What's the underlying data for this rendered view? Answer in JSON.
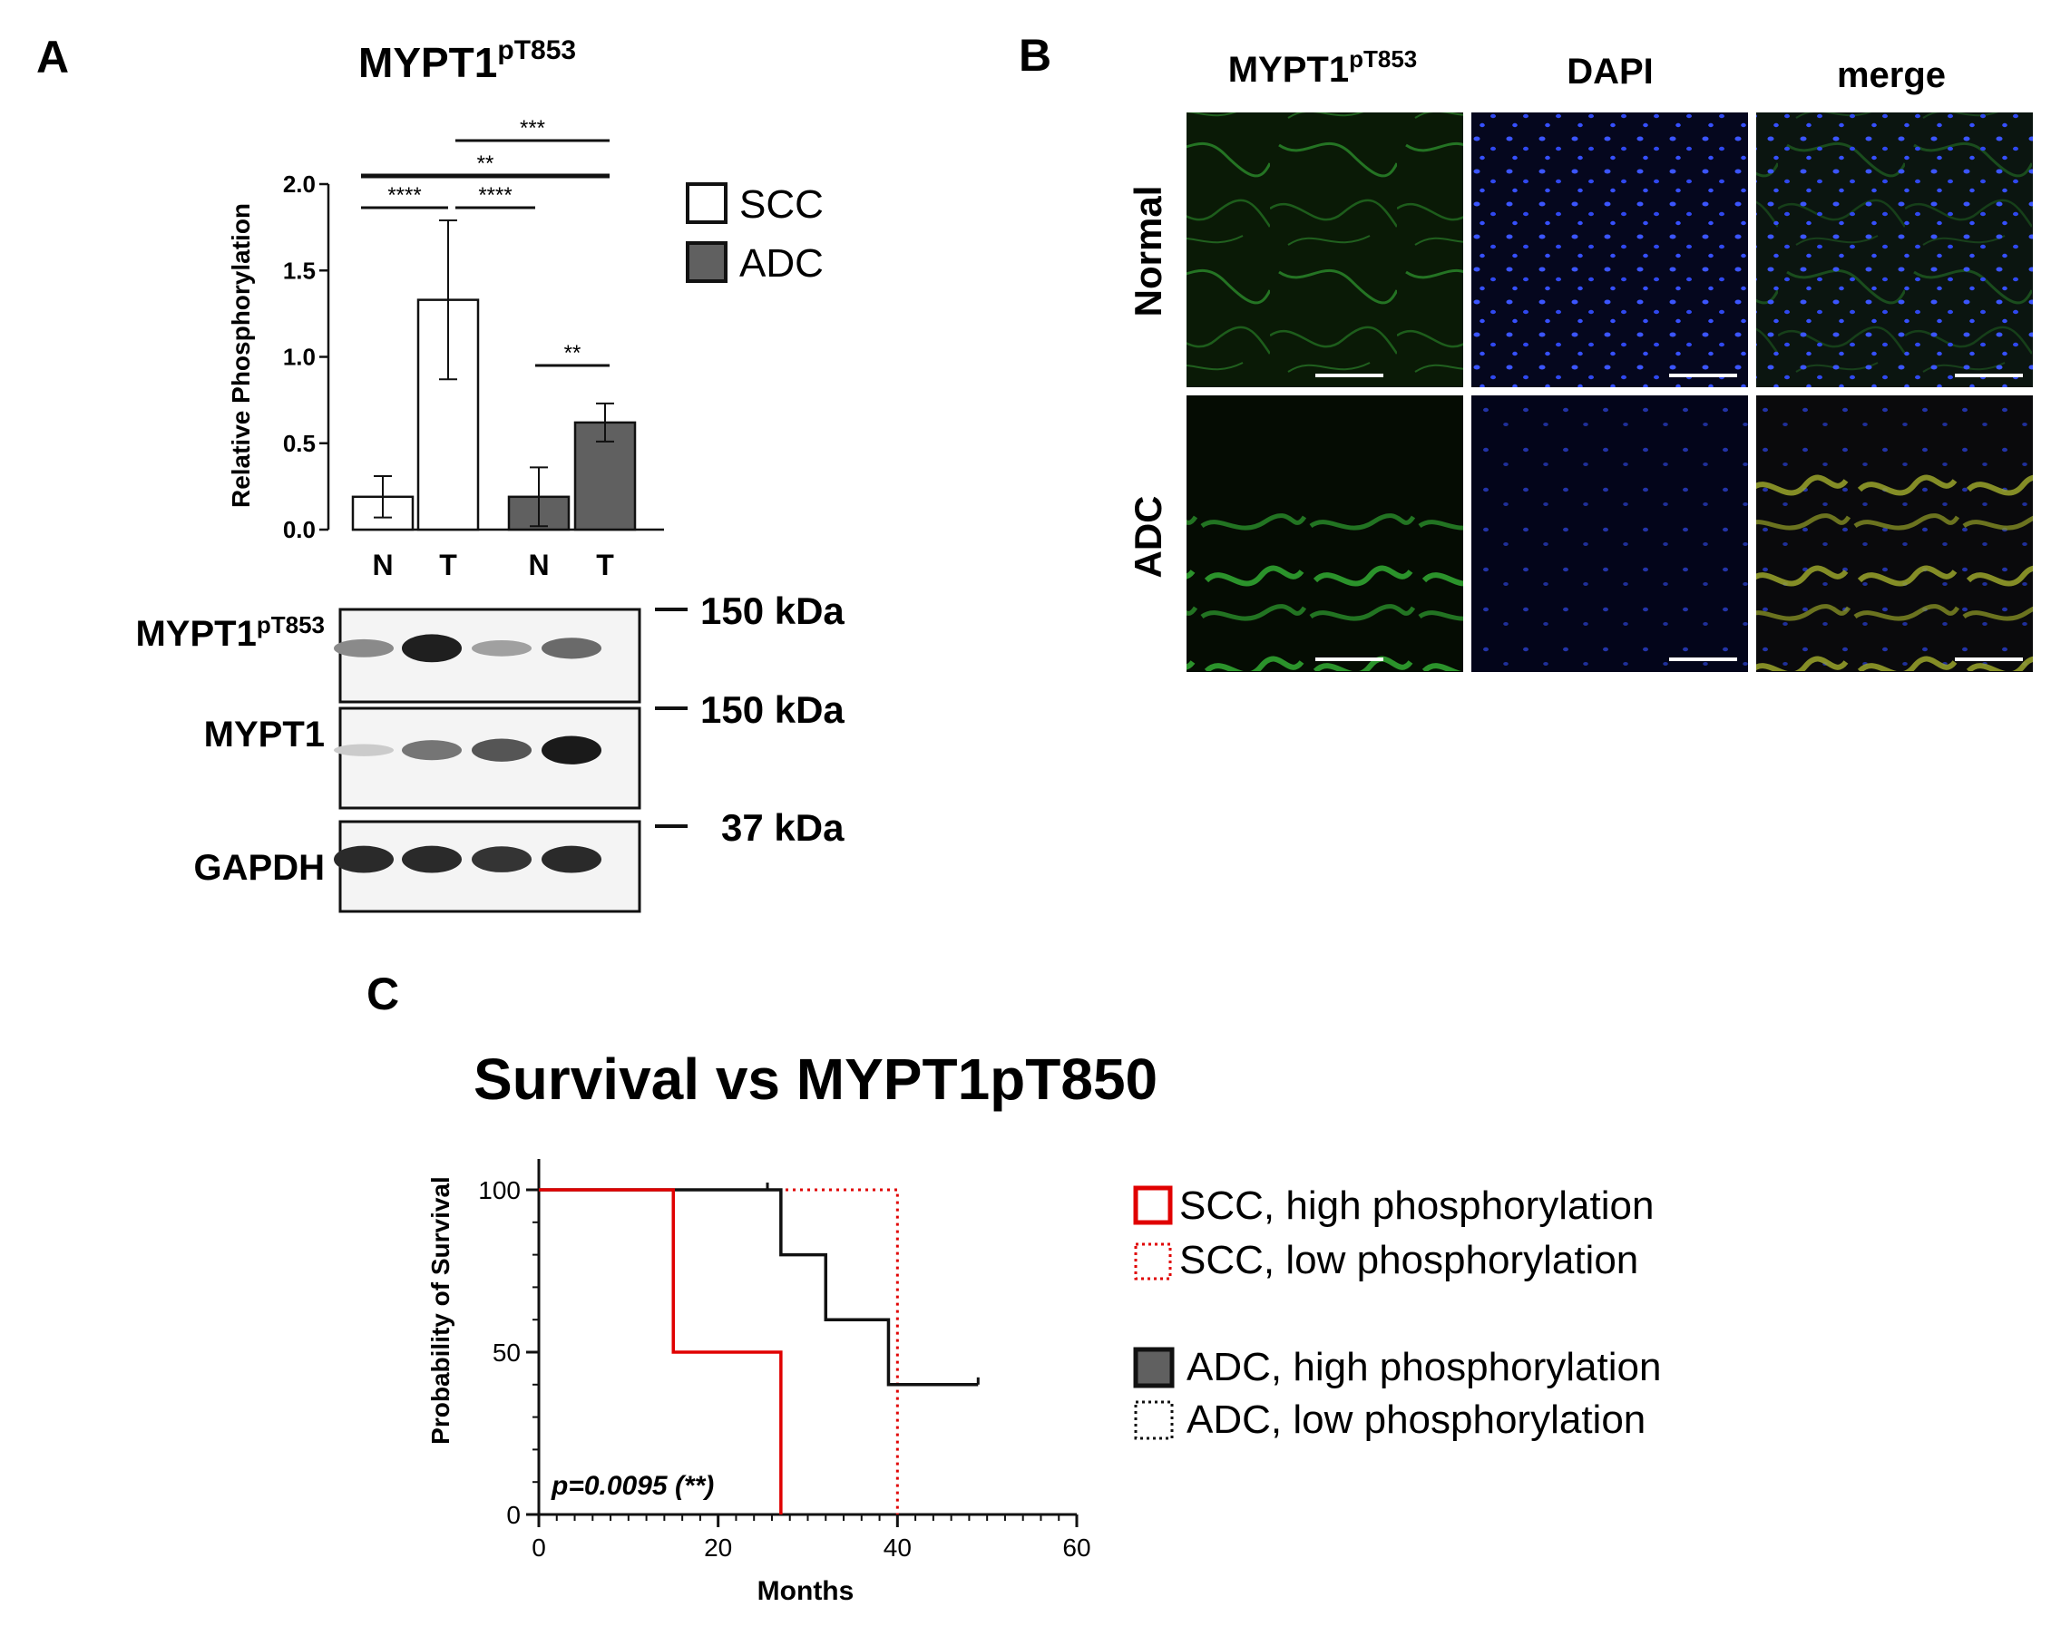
{
  "panels": {
    "a": {
      "letter": "A"
    },
    "b": {
      "letter": "B"
    },
    "c": {
      "letter": "C"
    }
  },
  "panel_a": {
    "title_base": "MYPT1",
    "title_sup": "pT853",
    "legend": [
      {
        "label": "SCC",
        "color": "#ffffff"
      },
      {
        "label": "ADC",
        "color": "#606060"
      }
    ],
    "significance": [
      "***",
      "**",
      "****",
      "****",
      "**"
    ]
  },
  "western_blot": {
    "rows": [
      {
        "label_base": "MYPT1",
        "label_sup": "pT853",
        "marker": "150 kDa",
        "band_intensity": [
          0.45,
          0.95,
          0.35,
          0.6
        ]
      },
      {
        "label_base": "MYPT1",
        "label_sup": "",
        "marker": "150 kDa",
        "band_intensity": [
          0.15,
          0.55,
          0.7,
          0.97
        ]
      },
      {
        "label_base": "GAPDH",
        "label_sup": "",
        "marker": "37 kDa",
        "band_intensity": [
          0.9,
          0.9,
          0.85,
          0.9
        ]
      }
    ]
  },
  "panel_b": {
    "column_headers": [
      {
        "base": "MYPT1",
        "sup": "pT853"
      },
      {
        "base": "DAPI",
        "sup": ""
      },
      {
        "base": "merge",
        "sup": ""
      }
    ],
    "row_headers": [
      "Normal",
      "ADC"
    ]
  },
  "chart_data": [
    {
      "type": "bar",
      "title": "MYPT1pT853",
      "ylabel": "Relative Phosphorylation",
      "xlabel": "",
      "ylim": [
        0,
        2.0
      ],
      "yticks": [
        "0.0",
        "0.5",
        "1.0",
        "1.5",
        "2.0"
      ],
      "categories": [
        "N",
        "T",
        "N",
        "T"
      ],
      "groups": [
        "SCC",
        "SCC",
        "ADC",
        "ADC"
      ],
      "values": [
        0.19,
        1.33,
        0.19,
        0.62
      ],
      "errors": [
        0.12,
        0.46,
        0.17,
        0.11
      ],
      "colors": {
        "SCC": "#ffffff",
        "ADC": "#606060"
      },
      "legend_position": "right",
      "significance": [
        {
          "from": 1,
          "to": 3,
          "label": "***"
        },
        {
          "from": 0,
          "to": 3,
          "label": "**"
        },
        {
          "from": 0,
          "to": 1,
          "label": "****"
        },
        {
          "from": 1,
          "to": 2,
          "label": "****"
        },
        {
          "from": 2,
          "to": 3,
          "label": "**"
        }
      ]
    },
    {
      "type": "line",
      "subtype": "kaplan-meier",
      "title": "Survival vs MYPT1pT850",
      "xlabel": "Months",
      "ylabel": "Probability of Survival",
      "xlim": [
        0,
        60
      ],
      "ylim": [
        0,
        100
      ],
      "xticks": [
        "0",
        "20",
        "40",
        "60"
      ],
      "yticks": [
        "0",
        "50",
        "100"
      ],
      "annotation": "p=0.0095 (**)",
      "legend_position": "right",
      "series": [
        {
          "name": "SCC, high phosphorylation",
          "color": "#e00000",
          "style": "solid",
          "x": [
            0,
            15,
            15,
            27,
            27
          ],
          "y": [
            100,
            100,
            50,
            50,
            0
          ]
        },
        {
          "name": "SCC, low phosphorylation",
          "color": "#e00000",
          "style": "dotted",
          "x": [
            0,
            40,
            40
          ],
          "y": [
            100,
            100,
            0
          ]
        },
        {
          "name": "ADC, high phosphorylation",
          "color": "#111111",
          "style": "solid",
          "x": [
            0,
            27,
            27,
            32,
            32,
            39,
            39,
            49
          ],
          "y": [
            100,
            100,
            80,
            80,
            60,
            60,
            40,
            40
          ]
        },
        {
          "name": "ADC, low phosphorylation",
          "color": "#111111",
          "style": "dotted",
          "x": [
            15,
            25
          ],
          "y": [
            100,
            100
          ]
        }
      ]
    }
  ]
}
